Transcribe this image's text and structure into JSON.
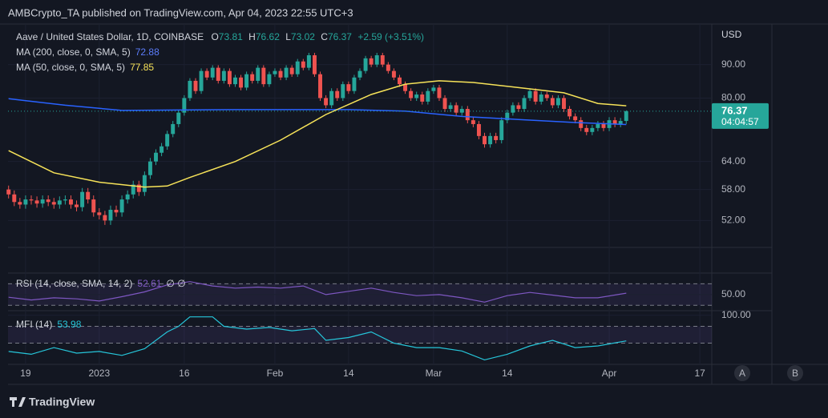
{
  "header": {
    "publisher_line": "AMBCrypto_TA published on TradingView.com, Apr 04, 2023 22:55 UTC+3"
  },
  "footer": {
    "brand": "TradingView",
    "buttons": [
      "A",
      "B"
    ]
  },
  "chart_data": [
    {
      "type": "candlestick",
      "title": "Aave / United States Dollar, 1D, COINBASE",
      "ohlc_letters": [
        "O",
        "H",
        "L",
        "C"
      ],
      "change": "+2.59 (+3.51%)",
      "currency": "USD",
      "countdown": "04:04:57",
      "up_color": "#26a69a",
      "down_color": "#ef5350",
      "log_scale": true,
      "ylim": [
        47.3,
        103.8
      ],
      "yticks": [
        {
          "value": 52,
          "label": "52.00"
        },
        {
          "value": 58,
          "label": "58.00"
        },
        {
          "value": 64,
          "label": "64.00"
        },
        {
          "value": 80,
          "label": "80.00"
        },
        {
          "value": 90,
          "label": "90.00"
        }
      ],
      "xlim": [
        -0.1,
        124.1
      ],
      "xticks": [
        {
          "value": 3,
          "label": "19"
        },
        {
          "value": 16,
          "label": "2023"
        },
        {
          "value": 31,
          "label": "16"
        },
        {
          "value": 47,
          "label": "Feb"
        },
        {
          "value": 60,
          "label": "14"
        },
        {
          "value": 75,
          "label": "Mar"
        },
        {
          "value": 88,
          "label": "14"
        },
        {
          "value": 106,
          "label": "Apr"
        },
        {
          "value": 122,
          "label": "17"
        }
      ],
      "x": [
        0,
        1,
        2,
        3,
        4,
        5,
        6,
        7,
        8,
        9,
        10,
        11,
        12,
        13,
        14,
        15,
        16,
        17,
        18,
        19,
        20,
        21,
        22,
        23,
        24,
        25,
        26,
        27,
        28,
        29,
        30,
        31,
        32,
        33,
        34,
        35,
        36,
        37,
        38,
        39,
        40,
        41,
        42,
        43,
        44,
        45,
        46,
        47,
        48,
        49,
        50,
        51,
        52,
        53,
        54,
        55,
        56,
        57,
        58,
        59,
        60,
        61,
        62,
        63,
        64,
        65,
        66,
        67,
        68,
        69,
        70,
        71,
        72,
        73,
        74,
        75,
        76,
        77,
        78,
        79,
        80,
        81,
        82,
        83,
        84,
        85,
        86,
        87,
        88,
        89,
        90,
        91,
        92,
        93,
        94,
        95,
        96,
        97,
        98,
        99,
        100,
        101,
        102,
        103,
        104,
        105,
        106,
        107,
        108,
        109
      ],
      "open": [
        58,
        57,
        55.5,
        55,
        56,
        55.8,
        55.2,
        56,
        55.5,
        55,
        55.8,
        56,
        55,
        54.5,
        57.5,
        56,
        53.5,
        53,
        52,
        54,
        53.5,
        56,
        57,
        59,
        57.5,
        61,
        64,
        66,
        67.5,
        70.5,
        73,
        76,
        80,
        85,
        82,
        88,
        86,
        89,
        85,
        88,
        84,
        86,
        83,
        87,
        85,
        89,
        84,
        87,
        88,
        86,
        89,
        87,
        91,
        89,
        93,
        87,
        80,
        78,
        82,
        80,
        84,
        82,
        86,
        88,
        92,
        90,
        93,
        90,
        88,
        86,
        84,
        82,
        80,
        81,
        79,
        82,
        83,
        80,
        77,
        78,
        76,
        77,
        74,
        73,
        70,
        68,
        70,
        69,
        74,
        76,
        78,
        77,
        80,
        82,
        79,
        81,
        80,
        78,
        80,
        77,
        75,
        74,
        72,
        71,
        72,
        73,
        72,
        74,
        73,
        73.81
      ],
      "high": [
        58.8,
        57.8,
        56.3,
        56.8,
        56.8,
        56.6,
        56.8,
        56.8,
        56.3,
        56.6,
        56.8,
        56.8,
        55.8,
        58.3,
        58.3,
        56.8,
        54.3,
        53.8,
        54.8,
        54.8,
        56.8,
        57.8,
        59.8,
        59.8,
        61.8,
        64.8,
        66.8,
        68.3,
        71.3,
        73.8,
        76.8,
        80.8,
        85.8,
        85.8,
        88.8,
        88.8,
        89.8,
        89.8,
        88.8,
        88.8,
        86.8,
        86.8,
        87.8,
        87.8,
        89.8,
        89.8,
        87.8,
        88.8,
        88.8,
        89.8,
        89.8,
        91.8,
        91.8,
        93.8,
        93.8,
        87.8,
        80.8,
        82.8,
        82.8,
        84.8,
        84.8,
        86.8,
        88.8,
        92.8,
        92.8,
        93.8,
        93.8,
        90.8,
        88.8,
        86.8,
        84.8,
        82.8,
        81.8,
        81.8,
        82.8,
        83.8,
        83.8,
        80.8,
        78.8,
        78.8,
        77.8,
        77.8,
        74.8,
        73.8,
        70.8,
        70.8,
        70.8,
        74.8,
        76.8,
        78.8,
        78.8,
        80.8,
        82.8,
        82.8,
        81.8,
        81.8,
        80.8,
        80.8,
        80.8,
        77.8,
        75.8,
        74.8,
        72.8,
        72.8,
        73.8,
        73.8,
        74.8,
        74.8,
        74.6,
        76.62
      ],
      "low": [
        56.2,
        54.7,
        54.2,
        54.2,
        55,
        54.4,
        54.4,
        54.7,
        54.2,
        54.2,
        55,
        54.2,
        53.7,
        53.7,
        55.2,
        52.7,
        52.2,
        51.2,
        51.2,
        52.7,
        52.7,
        55.2,
        56.2,
        56.7,
        56.7,
        60.2,
        63.2,
        65.2,
        66.7,
        69.7,
        72.2,
        75.2,
        79.2,
        81.2,
        81.2,
        85.2,
        85.2,
        84.2,
        84.2,
        83.2,
        83.2,
        82.2,
        82.2,
        84.2,
        84.2,
        83.2,
        83.2,
        86.2,
        85.2,
        85.2,
        86.2,
        86.2,
        88.2,
        88.2,
        86.2,
        79.2,
        77.2,
        77.2,
        79.2,
        79.2,
        81.2,
        81.2,
        85.2,
        87.2,
        89.2,
        89.2,
        89.2,
        87.2,
        85.2,
        83.2,
        81.2,
        79.2,
        79.2,
        78.2,
        78.2,
        81.2,
        79.2,
        76.2,
        76.2,
        75.2,
        75.2,
        73.2,
        72.2,
        69.2,
        67.2,
        67.2,
        68.2,
        68.2,
        73.2,
        75.2,
        76.2,
        76.2,
        79.2,
        78.2,
        78.2,
        79.2,
        77.2,
        77.2,
        76.2,
        74.2,
        73.2,
        71.2,
        70.2,
        70.2,
        71.2,
        71.2,
        71.2,
        72.2,
        72.2,
        73.02
      ],
      "close": [
        57,
        55.5,
        55,
        56,
        55.8,
        55.2,
        56,
        55.5,
        55,
        55.8,
        56,
        55,
        54.5,
        57.5,
        56,
        53.5,
        53,
        52,
        54,
        53.5,
        56,
        57,
        59,
        57.5,
        61,
        64,
        66,
        67.5,
        70.5,
        73,
        76,
        80,
        85,
        82,
        88,
        86,
        89,
        85,
        88,
        84,
        86,
        83,
        87,
        85,
        89,
        84,
        87,
        88,
        86,
        89,
        87,
        91,
        89,
        93,
        87,
        80,
        78,
        82,
        80,
        84,
        82,
        86,
        88,
        92,
        90,
        93,
        90,
        88,
        86,
        84,
        82,
        80,
        81,
        79,
        82,
        83,
        80,
        77,
        78,
        76,
        77,
        74,
        73,
        70,
        68,
        70,
        69,
        74,
        76,
        78,
        77,
        80,
        82,
        79,
        81,
        80,
        78,
        80,
        77,
        75,
        74,
        72,
        71,
        72,
        73,
        72,
        74,
        73,
        73.8,
        76.37
      ],
      "lines": [
        {
          "name": "MA (200, close, 0, SMA, 5)",
          "color": "#2962ff",
          "x": [
            0,
            10,
            20,
            40,
            60,
            70,
            80,
            90,
            100,
            109
          ],
          "values": [
            79.8,
            78,
            76.6,
            76.8,
            76.8,
            76.4,
            75,
            74.2,
            73.4,
            72.88
          ]
        },
        {
          "name": "MA (50, close, 0, SMA, 5)",
          "color": "#f7e359",
          "x": [
            0,
            8,
            16,
            24,
            28,
            32,
            40,
            48,
            56,
            64,
            70,
            76,
            82,
            90,
            98,
            104,
            109
          ],
          "values": [
            66.5,
            61.5,
            59.5,
            58.5,
            58.7,
            60.5,
            64,
            69,
            75.5,
            81,
            84,
            85,
            84.5,
            83,
            81.5,
            78.5,
            77.85
          ]
        }
      ]
    },
    {
      "type": "line",
      "title": "RSI (14, close, SMA, 14, 2)",
      "nan_markers": "∅ ∅",
      "color": "#7e57c2",
      "ylim": [
        20,
        90
      ],
      "yticks": [
        {
          "value": 50,
          "label": "50.00"
        }
      ],
      "bands": [
        30,
        70
      ],
      "x": [
        0,
        4,
        8,
        12,
        16,
        20,
        24,
        28,
        32,
        36,
        40,
        44,
        48,
        52,
        56,
        60,
        64,
        68,
        72,
        76,
        80,
        84,
        88,
        92,
        96,
        100,
        104,
        109
      ],
      "values": [
        45,
        40,
        44,
        42,
        38,
        46,
        55,
        68,
        74,
        66,
        62,
        64,
        62,
        66,
        50,
        56,
        62,
        54,
        48,
        50,
        44,
        36,
        48,
        54,
        49,
        44,
        44,
        52.61
      ]
    },
    {
      "type": "line",
      "title": "MFI (14)",
      "color": "#26c6da",
      "ylim": [
        12,
        108
      ],
      "yticks": [
        {
          "value": 100,
          "label": "100.00"
        }
      ],
      "bands": [
        50,
        80
      ],
      "x": [
        0,
        4,
        8,
        12,
        16,
        20,
        24,
        28,
        30,
        32,
        36,
        38,
        42,
        46,
        50,
        54,
        56,
        60,
        64,
        68,
        72,
        76,
        80,
        84,
        88,
        92,
        96,
        100,
        104,
        109
      ],
      "values": [
        35,
        30,
        42,
        32,
        35,
        28,
        40,
        70,
        80,
        97,
        97,
        80,
        75,
        78,
        72,
        76,
        55,
        60,
        70,
        50,
        42,
        42,
        36,
        20,
        30,
        45,
        55,
        42,
        45,
        53.98
      ]
    }
  ]
}
